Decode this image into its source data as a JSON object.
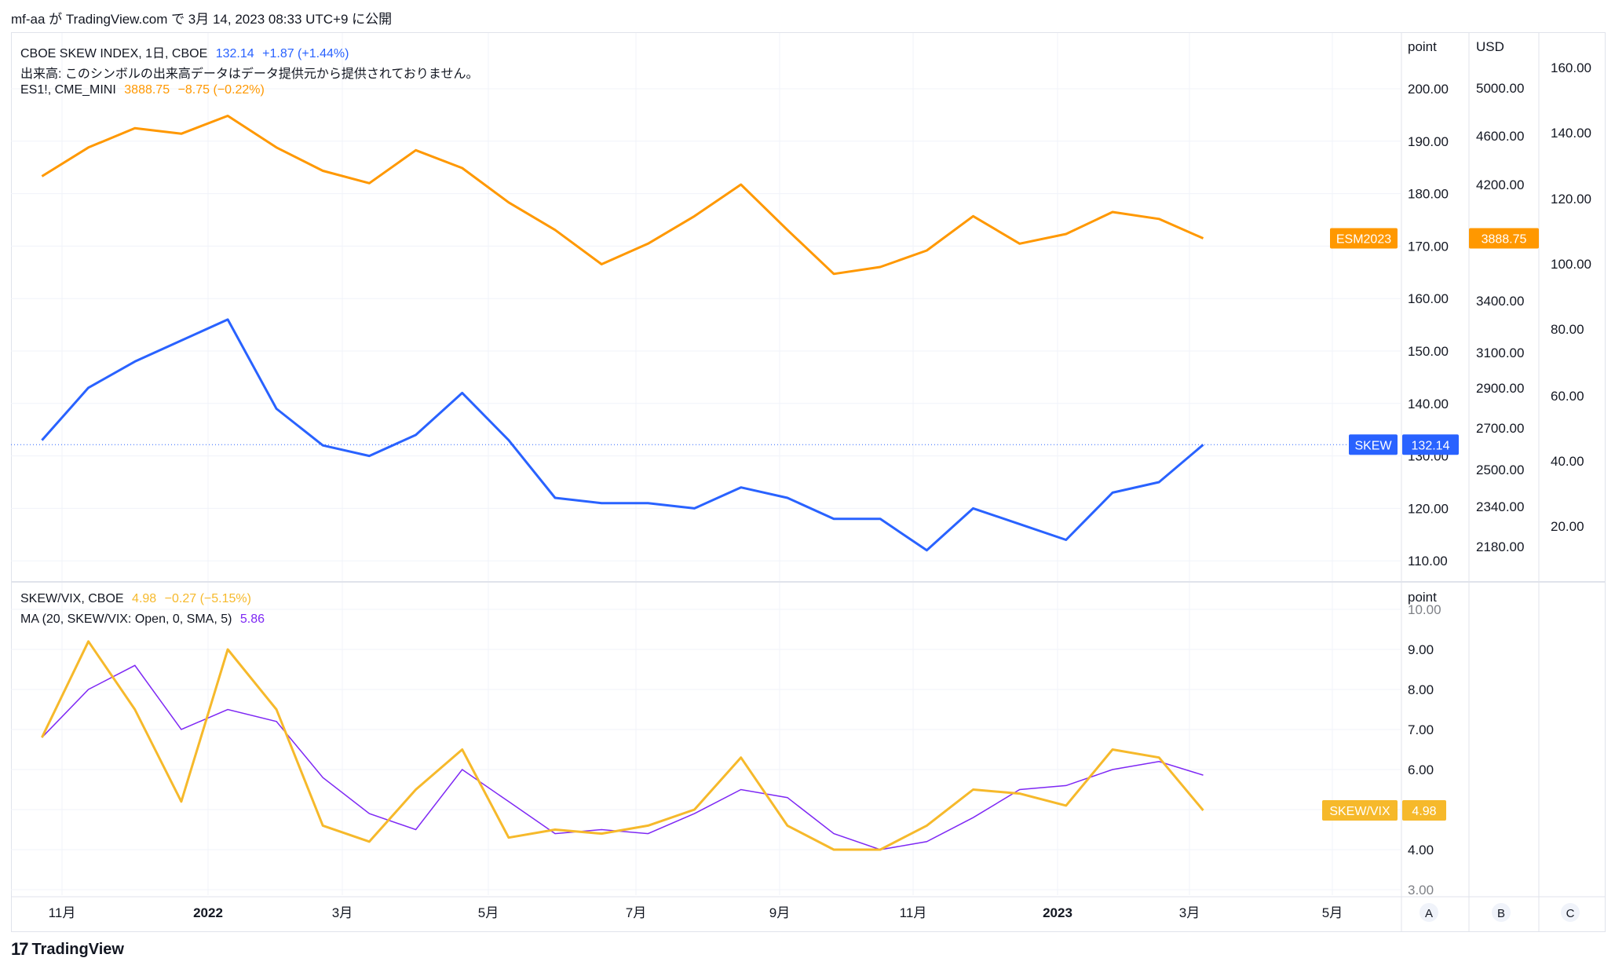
{
  "header": "mf-aa が TradingView.com で 3月 14, 2023 08:33 UTC+9 に公開",
  "footer_brand": "TradingView",
  "colors": {
    "skew": "#2962ff",
    "es": "#ff9800",
    "ratio": "#f6b92b",
    "ma": "#7e28f4",
    "grid": "#f0f3fa",
    "axis_text": "#131722"
  },
  "legend_top": {
    "line1": {
      "name": "CBOE SKEW INDEX, 1日, CBOE",
      "value": "132.14",
      "change": "+1.87 (+1.44%)"
    },
    "line2": "出来高: このシンボルの出来高データはデータ提供元から提供されておりません。",
    "line3": {
      "name": "ES1!, CME_MINI",
      "value": "3888.75",
      "change": "−8.75 (−0.22%)"
    }
  },
  "legend_bottom": {
    "line1": {
      "name": "SKEW/VIX, CBOE",
      "value": "4.98",
      "change": "−0.27 (−5.15%)"
    },
    "line2": {
      "name": "MA (20, SKEW/VIX: Open, 0, SMA, 5)",
      "value": "5.86"
    }
  },
  "axis_headers": {
    "top_point": "point",
    "top_usd": "USD",
    "bottom_point": "point"
  },
  "axis_ticks": {
    "skew": [
      "200.00",
      "190.00",
      "180.00",
      "170.00",
      "160.00",
      "150.00",
      "140.00",
      "130.00",
      "120.00",
      "110.00"
    ],
    "usd": [
      "5000.00",
      "4600.00",
      "4200.00",
      "3800.00",
      "3400.00",
      "3100.00",
      "2900.00",
      "2700.00",
      "2500.00",
      "2340.00",
      "2180.00"
    ],
    "third": [
      "160.00",
      "140.00",
      "120.00",
      "100.00",
      "80.00",
      "60.00",
      "40.00",
      "20.00"
    ],
    "ratio": [
      "10.00",
      "9.00",
      "8.00",
      "7.00",
      "6.00",
      "5.00",
      "4.00",
      "3.00"
    ]
  },
  "time_ticks": [
    "11月",
    "2022",
    "3月",
    "5月",
    "7月",
    "9月",
    "11月",
    "2023",
    "3月",
    "5月"
  ],
  "scale_buttons": [
    "A",
    "B",
    "C"
  ],
  "price_labels": {
    "es_symbol": "ESM2023",
    "es_value": "3888.75",
    "skew_symbol": "SKEW",
    "skew_value": "132.14",
    "ratio_symbol": "SKEW/VIX",
    "ratio_value": "4.98"
  },
  "chart_data": [
    {
      "type": "line",
      "series": [
        {
          "name": "CBOE SKEW INDEX",
          "x": [
            "2021-10-04",
            "2021-10-25",
            "2021-11-15",
            "2021-12-06",
            "2021-12-27",
            "2022-01-18",
            "2022-02-08",
            "2022-03-01",
            "2022-03-22",
            "2022-04-12",
            "2022-05-03",
            "2022-05-24",
            "2022-06-14",
            "2022-07-05",
            "2022-07-26",
            "2022-08-16",
            "2022-09-06",
            "2022-09-27",
            "2022-10-18",
            "2022-11-08",
            "2022-11-29",
            "2022-12-20",
            "2023-01-10",
            "2023-01-31",
            "2023-02-21",
            "2023-03-13"
          ],
          "values": [
            133,
            143,
            148,
            152,
            156,
            139,
            132,
            130,
            134,
            142,
            133,
            122,
            121,
            121,
            120,
            124,
            122,
            118,
            118,
            112,
            120,
            117,
            114,
            123,
            125,
            132.14
          ]
        },
        {
          "name": "ES1!",
          "x": [
            "2021-10-04",
            "2021-10-25",
            "2021-11-15",
            "2021-12-06",
            "2021-12-27",
            "2022-01-18",
            "2022-02-08",
            "2022-03-01",
            "2022-03-22",
            "2022-04-12",
            "2022-05-03",
            "2022-05-24",
            "2022-06-14",
            "2022-07-05",
            "2022-07-26",
            "2022-08-16",
            "2022-09-06",
            "2022-09-27",
            "2022-10-18",
            "2022-11-08",
            "2022-11-29",
            "2022-12-20",
            "2023-01-10",
            "2023-01-31",
            "2023-02-21",
            "2023-03-13"
          ],
          "values": [
            4340,
            4550,
            4690,
            4650,
            4780,
            4550,
            4380,
            4290,
            4530,
            4400,
            4150,
            3950,
            3700,
            3850,
            4050,
            4280,
            3950,
            3630,
            3680,
            3800,
            4050,
            3850,
            3920,
            4080,
            4030,
            3888.75
          ]
        }
      ],
      "ylim_skew": [
        110,
        200
      ],
      "ylim_es": [
        2180,
        5000
      ]
    },
    {
      "type": "line",
      "series": [
        {
          "name": "SKEW/VIX",
          "x": [
            "2021-10-04",
            "2021-10-25",
            "2021-11-15",
            "2021-12-06",
            "2021-12-27",
            "2022-01-18",
            "2022-02-08",
            "2022-03-01",
            "2022-03-22",
            "2022-04-12",
            "2022-05-03",
            "2022-05-24",
            "2022-06-14",
            "2022-07-05",
            "2022-07-26",
            "2022-08-16",
            "2022-09-06",
            "2022-09-27",
            "2022-10-18",
            "2022-11-08",
            "2022-11-29",
            "2022-12-20",
            "2023-01-10",
            "2023-01-31",
            "2023-02-21",
            "2023-03-13"
          ],
          "values": [
            6.8,
            9.2,
            7.5,
            5.2,
            9.0,
            7.5,
            4.6,
            4.2,
            5.5,
            6.5,
            4.3,
            4.5,
            4.4,
            4.6,
            5.0,
            6.3,
            4.6,
            4.0,
            4.0,
            4.6,
            5.5,
            5.4,
            5.1,
            6.5,
            6.3,
            4.98
          ]
        },
        {
          "name": "MA (20, SKEW/VIX: Open, 0, SMA, 5)",
          "x": [
            "2021-10-04",
            "2021-10-25",
            "2021-11-15",
            "2021-12-06",
            "2021-12-27",
            "2022-01-18",
            "2022-02-08",
            "2022-03-01",
            "2022-03-22",
            "2022-04-12",
            "2022-05-03",
            "2022-05-24",
            "2022-06-14",
            "2022-07-05",
            "2022-07-26",
            "2022-08-16",
            "2022-09-06",
            "2022-09-27",
            "2022-10-18",
            "2022-11-08",
            "2022-11-29",
            "2022-12-20",
            "2023-01-10",
            "2023-01-31",
            "2023-02-21",
            "2023-03-13"
          ],
          "values": [
            6.8,
            8.0,
            8.6,
            7.0,
            7.5,
            7.2,
            5.8,
            4.9,
            4.5,
            6.0,
            5.2,
            4.4,
            4.5,
            4.4,
            4.9,
            5.5,
            5.3,
            4.4,
            4.0,
            4.2,
            4.8,
            5.5,
            5.6,
            6.0,
            6.2,
            5.86
          ]
        }
      ],
      "ylim": [
        3,
        10
      ]
    }
  ]
}
